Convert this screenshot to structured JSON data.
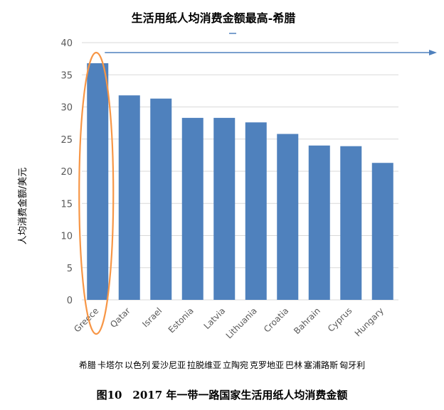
{
  "chart_data": {
    "type": "bar",
    "title": "生活用纸人均消费金额最高-希腊",
    "ylabel": "人均消费金额/美元",
    "xlabel": "",
    "ylim": [
      0,
      40
    ],
    "yticks": [
      0,
      5,
      10,
      15,
      20,
      25,
      30,
      35,
      40
    ],
    "categories": [
      "Greece",
      "Qatar",
      "Israel",
      "Estonia",
      "Latvia",
      "Lithuania",
      "Croatia",
      "Bahrain",
      "Cyprus",
      "Hungary"
    ],
    "values": [
      36.8,
      31.8,
      31.3,
      28.3,
      28.3,
      27.6,
      25.8,
      24.0,
      23.9,
      21.3
    ],
    "bar_color": "#4f81bd",
    "grid": true,
    "highlight": {
      "category": "Greece",
      "shape": "ellipse",
      "color": "#f79646"
    },
    "arrow_color": "#4f81bd"
  },
  "cn_names": [
    "希腊",
    "卡塔尔",
    "以色列",
    "爱沙尼亚",
    "拉脱维亚",
    "立陶宛",
    "克罗地亚",
    "巴林",
    "塞浦路斯",
    "匈牙利"
  ],
  "figure_caption": "图10　2017 年一带一路国家生活用纸人均消费金额"
}
